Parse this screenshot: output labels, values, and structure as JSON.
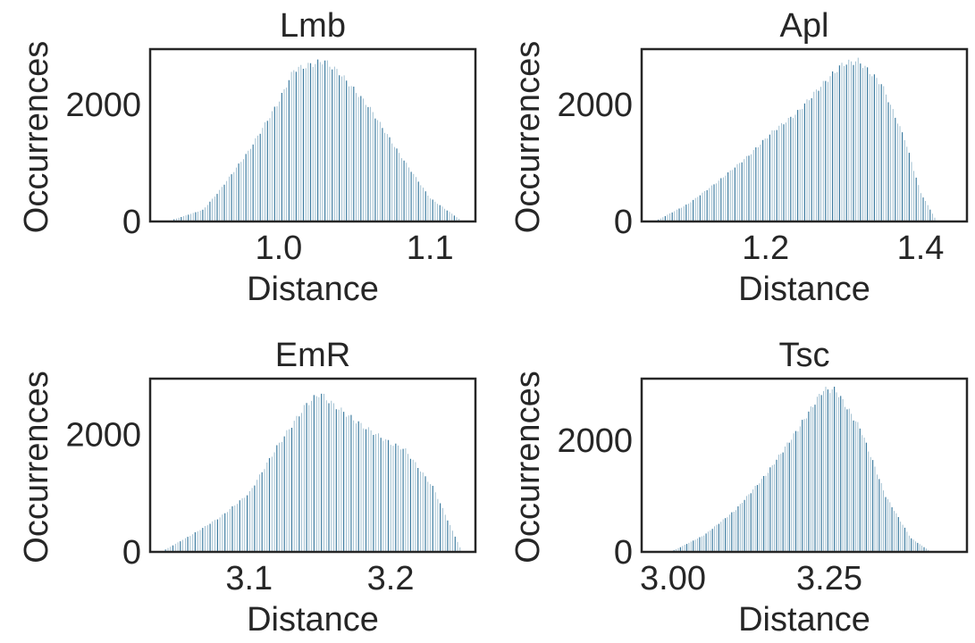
{
  "accent_color": "#2a6f97",
  "chart_data": [
    {
      "type": "bar",
      "title": "Lmb",
      "xlabel": "Distance",
      "ylabel": "Occurrences",
      "xlim": [
        0.915,
        1.13
      ],
      "ylim": [
        0,
        2950
      ],
      "xticks": [
        1.0,
        1.1
      ],
      "xtick_labels": [
        "1.0",
        "1.1"
      ],
      "yticks": [
        0,
        2000
      ],
      "ytick_labels": [
        "0",
        "2000"
      ],
      "grid": false,
      "profile_x": [
        0.93,
        0.95,
        0.96,
        0.98,
        1.0,
        1.01,
        1.03,
        1.04,
        1.06,
        1.08,
        1.1,
        1.12
      ],
      "profile_y": [
        30,
        200,
        500,
        1200,
        2050,
        2600,
        2750,
        2550,
        1950,
        1150,
        400,
        30
      ]
    },
    {
      "type": "bar",
      "title": "Apl",
      "xlabel": "Distance",
      "ylabel": "Occurrences",
      "xlim": [
        1.04,
        1.46
      ],
      "ylim": [
        0,
        2950
      ],
      "xticks": [
        1.2,
        1.4
      ],
      "xtick_labels": [
        "1.2",
        "1.4"
      ],
      "yticks": [
        0,
        2000
      ],
      "ytick_labels": [
        "0",
        "2000"
      ],
      "grid": false,
      "profile_x": [
        1.06,
        1.1,
        1.14,
        1.18,
        1.21,
        1.24,
        1.27,
        1.3,
        1.32,
        1.35,
        1.38,
        1.4,
        1.42
      ],
      "profile_y": [
        20,
        300,
        700,
        1150,
        1550,
        1850,
        2300,
        2700,
        2750,
        2350,
        1400,
        500,
        30
      ]
    },
    {
      "type": "bar",
      "title": "EmR",
      "xlabel": "Distance",
      "ylabel": "Occurrences",
      "xlim": [
        3.03,
        3.26
      ],
      "ylim": [
        0,
        2950
      ],
      "xticks": [
        3.1,
        3.2
      ],
      "xtick_labels": [
        "3.1",
        "3.2"
      ],
      "yticks": [
        0,
        2000
      ],
      "ytick_labels": [
        "0",
        "2000"
      ],
      "grid": false,
      "profile_x": [
        3.04,
        3.06,
        3.08,
        3.1,
        3.12,
        3.14,
        3.15,
        3.16,
        3.18,
        3.2,
        3.21,
        3.23,
        3.25
      ],
      "profile_y": [
        30,
        300,
        600,
        1000,
        1800,
        2500,
        2700,
        2500,
        2150,
        1850,
        1750,
        1100,
        30
      ]
    },
    {
      "type": "bar",
      "title": "Tsc",
      "xlabel": "Distance",
      "ylabel": "Occurrences",
      "xlim": [
        2.95,
        3.47
      ],
      "ylim": [
        0,
        3100
      ],
      "xticks": [
        3.0,
        3.25
      ],
      "xtick_labels": [
        "3.00",
        "3.25"
      ],
      "yticks": [
        0,
        2000
      ],
      "ytick_labels": [
        "0",
        "2000"
      ],
      "grid": false,
      "profile_x": [
        3.0,
        3.05,
        3.1,
        3.15,
        3.2,
        3.24,
        3.26,
        3.3,
        3.34,
        3.38,
        3.41
      ],
      "profile_y": [
        20,
        300,
        750,
        1400,
        2200,
        2900,
        2900,
        2200,
        1000,
        250,
        20
      ]
    }
  ]
}
